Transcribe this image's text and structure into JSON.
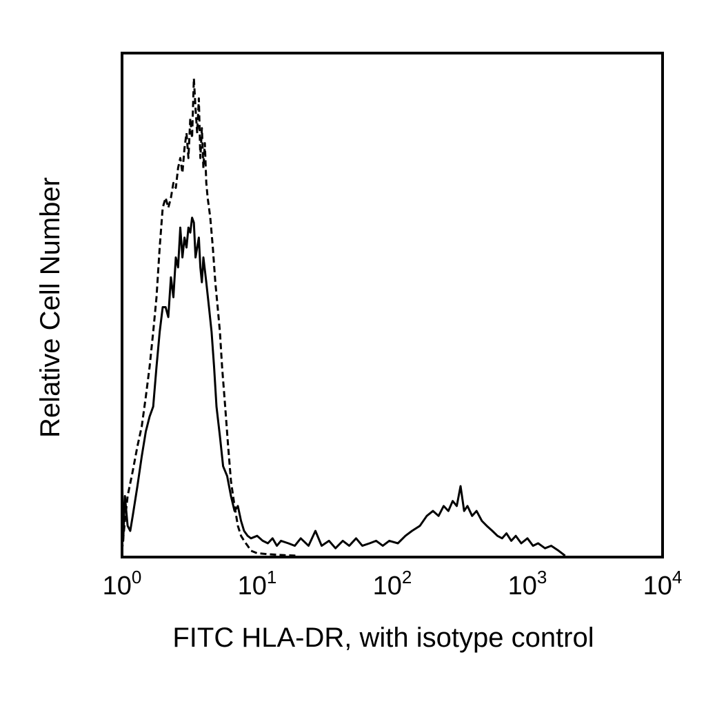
{
  "chart_data": {
    "type": "line",
    "title": "",
    "xlabel": "FITC HLA-DR, with isotype control",
    "ylabel": "Relative Cell Number",
    "x_scale": "log",
    "xlim": [
      1,
      10000
    ],
    "ylim": [
      0,
      1
    ],
    "grid": false,
    "legend": "none",
    "x_ticks": [
      {
        "base": "10",
        "exp": "0",
        "value": 1
      },
      {
        "base": "10",
        "exp": "1",
        "value": 10
      },
      {
        "base": "10",
        "exp": "2",
        "value": 100
      },
      {
        "base": "10",
        "exp": "3",
        "value": 1000
      },
      {
        "base": "10",
        "exp": "4",
        "value": 10000
      }
    ],
    "series": [
      {
        "style": "dashed",
        "x": [
          1.0,
          1.05,
          1.1,
          1.2,
          1.3,
          1.4,
          1.5,
          1.6,
          1.7,
          1.8,
          1.9,
          2.0,
          2.1,
          2.2,
          2.3,
          2.4,
          2.5,
          2.6,
          2.7,
          2.8,
          2.9,
          3.0,
          3.1,
          3.2,
          3.3,
          3.4,
          3.5,
          3.6,
          3.7,
          3.8,
          3.9,
          4.0,
          4.1,
          4.2,
          4.3,
          4.4,
          4.5,
          4.7,
          4.9,
          5.1,
          5.3,
          5.5,
          5.8,
          6.1,
          6.4,
          6.8,
          7.2,
          7.6,
          8.0,
          8.5,
          9.0,
          10,
          11,
          12,
          14,
          16,
          20
        ],
        "y": [
          0.01,
          0.07,
          0.12,
          0.17,
          0.22,
          0.26,
          0.32,
          0.38,
          0.45,
          0.52,
          0.62,
          0.7,
          0.72,
          0.7,
          0.72,
          0.75,
          0.74,
          0.78,
          0.8,
          0.77,
          0.82,
          0.85,
          0.8,
          0.88,
          0.84,
          0.96,
          0.9,
          0.85,
          0.92,
          0.8,
          0.86,
          0.78,
          0.83,
          0.75,
          0.72,
          0.7,
          0.68,
          0.62,
          0.55,
          0.5,
          0.45,
          0.38,
          0.3,
          0.22,
          0.15,
          0.1,
          0.06,
          0.04,
          0.03,
          0.02,
          0.01,
          0.005,
          0.004,
          0.003,
          0.002,
          0.001,
          0.0
        ]
      },
      {
        "style": "solid",
        "x": [
          1.0,
          1.02,
          1.05,
          1.1,
          1.15,
          1.2,
          1.3,
          1.4,
          1.5,
          1.6,
          1.7,
          1.8,
          1.9,
          2.0,
          2.1,
          2.2,
          2.3,
          2.4,
          2.5,
          2.6,
          2.7,
          2.8,
          2.9,
          3.0,
          3.1,
          3.2,
          3.3,
          3.4,
          3.5,
          3.6,
          3.7,
          3.8,
          3.9,
          4.0,
          4.2,
          4.4,
          4.6,
          4.8,
          5.0,
          5.3,
          5.6,
          6.0,
          6.4,
          6.8,
          7.2,
          7.6,
          8.0,
          8.5,
          9.0,
          10,
          11,
          12,
          13,
          14,
          15,
          17,
          19,
          21,
          24,
          27,
          30,
          34,
          38,
          43,
          48,
          54,
          60,
          68,
          76,
          85,
          95,
          110,
          125,
          140,
          160,
          180,
          200,
          220,
          240,
          260,
          280,
          300,
          320,
          340,
          360,
          390,
          420,
          460,
          500,
          550,
          600,
          650,
          700,
          760,
          820,
          900,
          1000,
          1100,
          1200,
          1350,
          1500,
          1700,
          1900
        ],
        "y": [
          0.18,
          0.03,
          0.12,
          0.06,
          0.05,
          0.08,
          0.14,
          0.2,
          0.25,
          0.28,
          0.3,
          0.38,
          0.45,
          0.5,
          0.5,
          0.48,
          0.56,
          0.52,
          0.6,
          0.58,
          0.66,
          0.6,
          0.64,
          0.62,
          0.66,
          0.65,
          0.68,
          0.67,
          0.6,
          0.62,
          0.64,
          0.58,
          0.55,
          0.6,
          0.55,
          0.5,
          0.45,
          0.38,
          0.3,
          0.24,
          0.18,
          0.16,
          0.12,
          0.09,
          0.1,
          0.07,
          0.05,
          0.04,
          0.035,
          0.04,
          0.03,
          0.025,
          0.035,
          0.02,
          0.03,
          0.025,
          0.02,
          0.035,
          0.02,
          0.05,
          0.02,
          0.03,
          0.015,
          0.03,
          0.02,
          0.035,
          0.02,
          0.025,
          0.03,
          0.02,
          0.03,
          0.025,
          0.04,
          0.05,
          0.06,
          0.08,
          0.09,
          0.08,
          0.1,
          0.09,
          0.11,
          0.1,
          0.14,
          0.09,
          0.1,
          0.08,
          0.09,
          0.07,
          0.06,
          0.05,
          0.04,
          0.035,
          0.045,
          0.03,
          0.04,
          0.025,
          0.035,
          0.02,
          0.025,
          0.015,
          0.02,
          0.01,
          0.0
        ]
      }
    ]
  }
}
